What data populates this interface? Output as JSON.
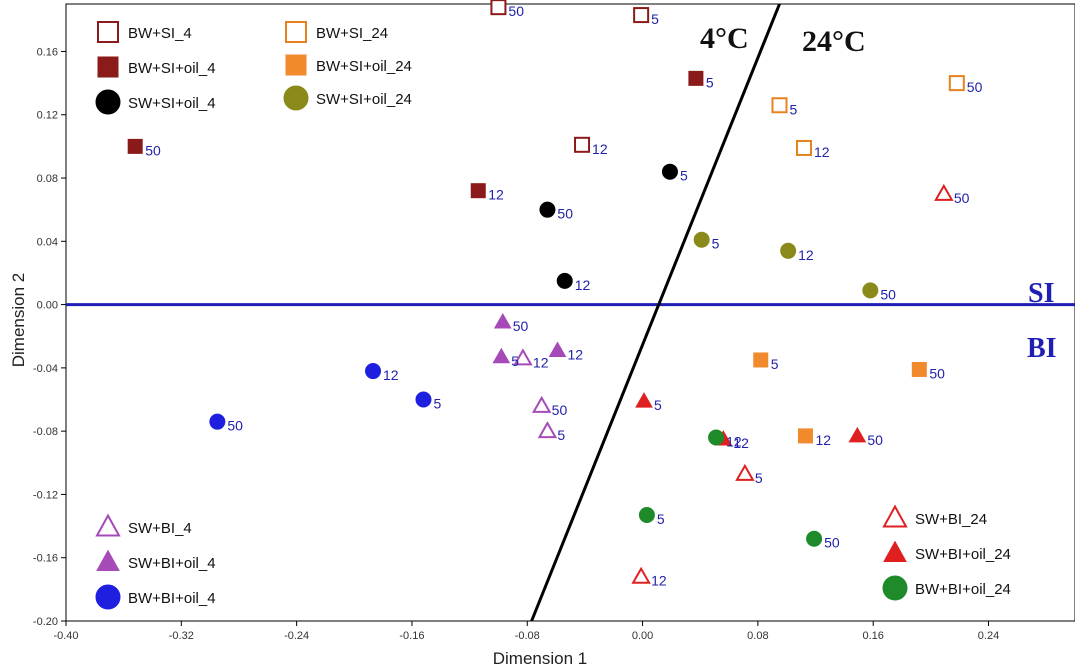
{
  "chart_data": {
    "type": "scatter",
    "xlabel": "Dimension 1",
    "ylabel": "Dimension 2",
    "xlim": [
      -0.4,
      0.3
    ],
    "ylim": [
      -0.2,
      0.19
    ],
    "x_ticks": [
      "-0.40",
      "-0.32",
      "-0.24",
      "-0.16",
      "-0.08",
      "0.00",
      "0.08",
      "0.16",
      "0.24"
    ],
    "x_tick_values": [
      -0.4,
      -0.32,
      -0.24,
      -0.16,
      -0.08,
      0.0,
      0.08,
      0.16,
      0.24
    ],
    "y_ticks": [
      "0.16",
      "0.12",
      "0.08",
      "0.04",
      "0.00",
      "-0.04",
      "-0.08",
      "-0.12",
      "-0.16",
      "-0.20"
    ],
    "y_tick_values": [
      0.16,
      0.12,
      0.08,
      0.04,
      0.0,
      -0.04,
      -0.08,
      -0.12,
      -0.16,
      -0.2
    ],
    "grid": false,
    "annotations": {
      "temp_left": "4°C",
      "temp_right": "24°C",
      "region_upper": "SI",
      "region_lower": "BI"
    },
    "divider_line": {
      "x1": -0.077,
      "y1": -0.2,
      "x2": 0.095,
      "y2": 0.19
    },
    "horizontal_line_y": 0.0,
    "series": [
      {
        "name": "BW+SI_4",
        "marker": "square",
        "filled": false,
        "color": "#8b1a1a",
        "points": [
          {
            "x": -0.1,
            "y": 0.188,
            "label": "50"
          },
          {
            "x": -0.001,
            "y": 0.183,
            "label": "5"
          },
          {
            "x": -0.042,
            "y": 0.101,
            "label": "12"
          }
        ]
      },
      {
        "name": "BW+SI+oil_4",
        "marker": "square",
        "filled": true,
        "color": "#8b1a1a",
        "points": [
          {
            "x": -0.352,
            "y": 0.1,
            "label": "50"
          },
          {
            "x": -0.114,
            "y": 0.072,
            "label": "12"
          },
          {
            "x": 0.037,
            "y": 0.143,
            "label": "5"
          }
        ]
      },
      {
        "name": "SW+SI+oil_4",
        "marker": "circle",
        "filled": true,
        "color": "#000000",
        "points": [
          {
            "x": -0.066,
            "y": 0.06,
            "label": "50"
          },
          {
            "x": -0.054,
            "y": 0.015,
            "label": "12"
          },
          {
            "x": 0.019,
            "y": 0.084,
            "label": "5"
          }
        ]
      },
      {
        "name": "BW+SI_24",
        "marker": "square",
        "filled": false,
        "color": "#e8821e",
        "points": [
          {
            "x": 0.095,
            "y": 0.126,
            "label": "5"
          },
          {
            "x": 0.112,
            "y": 0.099,
            "label": "12"
          },
          {
            "x": 0.218,
            "y": 0.14,
            "label": "50"
          }
        ]
      },
      {
        "name": "BW+SI+oil_24",
        "marker": "square",
        "filled": true,
        "color": "#f08a2c",
        "points": [
          {
            "x": 0.082,
            "y": -0.035,
            "label": "5"
          },
          {
            "x": 0.113,
            "y": -0.083,
            "label": "12"
          },
          {
            "x": 0.192,
            "y": -0.041,
            "label": "50"
          }
        ]
      },
      {
        "name": "SW+SI+oil_24",
        "marker": "circle",
        "filled": true,
        "color": "#8a8a1a",
        "points": [
          {
            "x": 0.041,
            "y": 0.041,
            "label": "5"
          },
          {
            "x": 0.101,
            "y": 0.034,
            "label": "12"
          },
          {
            "x": 0.158,
            "y": 0.009,
            "label": "50"
          }
        ]
      },
      {
        "name": "SW+BI_4",
        "marker": "triangle",
        "filled": false,
        "color": "#a64ab8",
        "points": [
          {
            "x": -0.083,
            "y": -0.034,
            "label": "12"
          },
          {
            "x": -0.07,
            "y": -0.064,
            "label": "50"
          },
          {
            "x": -0.066,
            "y": -0.08,
            "label": "5"
          }
        ]
      },
      {
        "name": "SW+BI+oil_4",
        "marker": "triangle",
        "filled": true,
        "color": "#a64ab8",
        "points": [
          {
            "x": -0.097,
            "y": -0.011,
            "label": "50"
          },
          {
            "x": -0.098,
            "y": -0.033,
            "label": "5"
          },
          {
            "x": -0.059,
            "y": -0.029,
            "label": "12"
          }
        ]
      },
      {
        "name": "BW+BI+oil_4",
        "marker": "circle",
        "filled": true,
        "color": "#1f1fe0",
        "points": [
          {
            "x": -0.295,
            "y": -0.074,
            "label": "50"
          },
          {
            "x": -0.187,
            "y": -0.042,
            "label": "12"
          },
          {
            "x": -0.152,
            "y": -0.06,
            "label": "5"
          }
        ]
      },
      {
        "name": "SW+BI_24",
        "marker": "triangle",
        "filled": false,
        "color": "#e02020",
        "points": [
          {
            "x": -0.001,
            "y": -0.172,
            "label": "12"
          },
          {
            "x": 0.071,
            "y": -0.107,
            "label": "5"
          },
          {
            "x": 0.209,
            "y": 0.07,
            "label": "50"
          }
        ]
      },
      {
        "name": "SW+BI+oil_24",
        "marker": "triangle",
        "filled": true,
        "color": "#e02020",
        "points": [
          {
            "x": 0.001,
            "y": -0.061,
            "label": "5"
          },
          {
            "x": 0.056,
            "y": -0.085,
            "label": "12"
          },
          {
            "x": 0.149,
            "y": -0.083,
            "label": "50"
          }
        ]
      },
      {
        "name": "BW+BI+oil_24",
        "marker": "circle",
        "filled": true,
        "color": "#1e8a2a",
        "points": [
          {
            "x": 0.003,
            "y": -0.133,
            "label": "5"
          },
          {
            "x": 0.051,
            "y": -0.084,
            "label": "12"
          },
          {
            "x": 0.119,
            "y": -0.148,
            "label": "50"
          }
        ]
      }
    ],
    "legends": [
      {
        "placement": "top-left",
        "items": [
          "BW+SI_4",
          "BW+SI+oil_4",
          "SW+SI+oil_4"
        ]
      },
      {
        "placement": "top-center",
        "items": [
          "BW+SI_24",
          "BW+SI+oil_24",
          "SW+SI+oil_24"
        ]
      },
      {
        "placement": "bottom-left",
        "items": [
          "SW+BI_4",
          "SW+BI+oil_4",
          "BW+BI+oil_4"
        ]
      },
      {
        "placement": "bottom-right",
        "items": [
          "SW+BI_24",
          "SW+BI+oil_24",
          "BW+BI+oil_24"
        ]
      }
    ]
  }
}
